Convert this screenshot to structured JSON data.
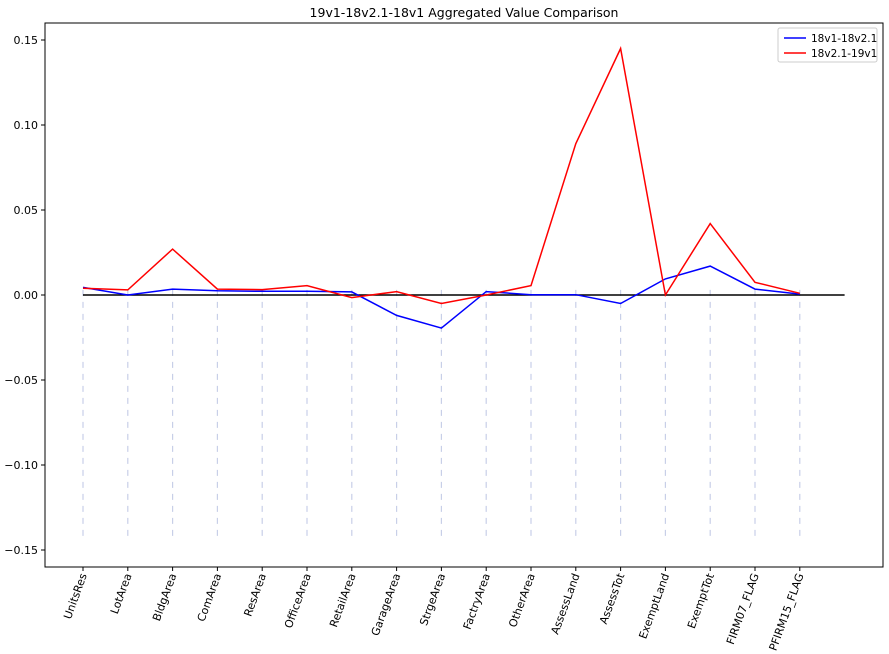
{
  "chart_data": {
    "type": "line",
    "title": "19v1-18v2.1-18v1 Aggregated Value Comparison",
    "xlabel": "",
    "ylabel": "",
    "categories": [
      "UnitsRes",
      "LotArea",
      "BldgArea",
      "ComArea",
      "ResArea",
      "OfficeArea",
      "RetailArea",
      "GarageArea",
      "StrgeArea",
      "FactryArea",
      "OtherArea",
      "AssessLand",
      "AssessTot",
      "ExemptLand",
      "ExemptTot",
      "FIRM07_FLAG",
      "PFIRM15_FLAG"
    ],
    "ylim": [
      -0.16,
      0.16
    ],
    "yticks": [
      -0.15,
      -0.1,
      -0.05,
      0.0,
      0.05,
      0.1,
      0.15
    ],
    "ytick_labels": [
      "−0.15",
      "−0.10",
      "−0.05",
      "0.00",
      "0.05",
      "0.10",
      "0.15"
    ],
    "legend_position": "top-right",
    "zero_line": {
      "y": 0,
      "color": "#000000",
      "x_extent_categories": [
        0,
        17
      ]
    },
    "vertical_guides": {
      "color": "#c8cfe8",
      "style": "dashed",
      "y_from": 0.003,
      "y_to": -0.145
    },
    "series": [
      {
        "name": "18v1-18v2.1",
        "color": "#0000ff",
        "values": [
          0.0045,
          0.0,
          0.0035,
          0.0025,
          0.0022,
          0.0022,
          0.0018,
          -0.012,
          -0.0195,
          0.002,
          0.0002,
          0.0002,
          -0.005,
          0.0095,
          0.017,
          0.0035,
          0.0005
        ]
      },
      {
        "name": "18v2.1-19v1",
        "color": "#ff0000",
        "values": [
          0.004,
          0.003,
          0.027,
          0.0035,
          0.0032,
          0.0055,
          -0.0015,
          0.002,
          -0.005,
          0.0,
          0.0055,
          0.089,
          0.145,
          0.0,
          0.042,
          0.0075,
          0.001
        ]
      }
    ]
  }
}
